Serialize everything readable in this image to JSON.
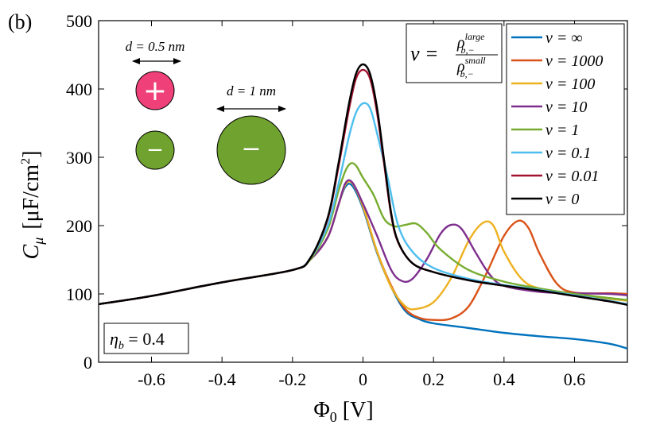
{
  "panel_label": "(b)",
  "chart_data": {
    "type": "line",
    "title": "",
    "xlabel": "Φ₀ [V]",
    "xlabel_main": "Φ",
    "xlabel_sub": "0",
    "xlabel_unit": " [V]",
    "ylabel": "C_μ [μF/cm²]",
    "ylabel_main": "C",
    "ylabel_sub": "μ",
    "ylabel_unit": "[μF/cm",
    "ylabel_sup": "2",
    "ylabel_close": "]",
    "xlim": [
      -0.75,
      0.75
    ],
    "ylim": [
      0,
      500
    ],
    "xticks": [
      -0.6,
      -0.4,
      -0.2,
      0,
      0.2,
      0.4,
      0.6
    ],
    "xtick_labels": [
      "-0.6",
      "-0.4",
      "-0.2",
      "0",
      "0.2",
      "0.4",
      "0.6"
    ],
    "yticks": [
      0,
      100,
      200,
      300,
      400,
      500
    ],
    "ytick_labels": [
      "0",
      "100",
      "200",
      "300",
      "400",
      "500"
    ],
    "legend_position": "top-right",
    "series": [
      {
        "name": "ν = ∞",
        "color": "#0072BD",
        "points": [
          [
            -0.75,
            85
          ],
          [
            -0.6,
            97
          ],
          [
            -0.4,
            117
          ],
          [
            -0.2,
            135
          ],
          [
            -0.15,
            150
          ],
          [
            -0.1,
            183
          ],
          [
            -0.07,
            230
          ],
          [
            -0.05,
            257
          ],
          [
            -0.03,
            258
          ],
          [
            0,
            225
          ],
          [
            0.04,
            160
          ],
          [
            0.08,
            110
          ],
          [
            0.12,
            75
          ],
          [
            0.16,
            63
          ],
          [
            0.2,
            57
          ],
          [
            0.3,
            50
          ],
          [
            0.4,
            43
          ],
          [
            0.5,
            38
          ],
          [
            0.6,
            34
          ],
          [
            0.7,
            27
          ],
          [
            0.75,
            20
          ]
        ]
      },
      {
        "name": "ν = 1000",
        "color": "#D95319",
        "points": [
          [
            -0.75,
            85
          ],
          [
            -0.6,
            97
          ],
          [
            -0.4,
            117
          ],
          [
            -0.2,
            135
          ],
          [
            -0.15,
            150
          ],
          [
            -0.1,
            183
          ],
          [
            -0.07,
            230
          ],
          [
            -0.05,
            260
          ],
          [
            -0.03,
            262
          ],
          [
            0,
            228
          ],
          [
            0.04,
            162
          ],
          [
            0.08,
            112
          ],
          [
            0.12,
            78
          ],
          [
            0.16,
            65
          ],
          [
            0.2,
            62
          ],
          [
            0.25,
            64
          ],
          [
            0.3,
            82
          ],
          [
            0.35,
            130
          ],
          [
            0.4,
            185
          ],
          [
            0.44,
            207
          ],
          [
            0.47,
            196
          ],
          [
            0.5,
            160
          ],
          [
            0.55,
            115
          ],
          [
            0.6,
            102
          ],
          [
            0.7,
            101
          ],
          [
            0.75,
            100
          ]
        ]
      },
      {
        "name": "ν = 100",
        "color": "#EDB120",
        "points": [
          [
            -0.75,
            85
          ],
          [
            -0.6,
            97
          ],
          [
            -0.4,
            117
          ],
          [
            -0.2,
            135
          ],
          [
            -0.15,
            150
          ],
          [
            -0.1,
            183
          ],
          [
            -0.07,
            230
          ],
          [
            -0.05,
            260
          ],
          [
            -0.03,
            262
          ],
          [
            0,
            228
          ],
          [
            0.04,
            162
          ],
          [
            0.08,
            110
          ],
          [
            0.12,
            82
          ],
          [
            0.15,
            78
          ],
          [
            0.2,
            88
          ],
          [
            0.25,
            123
          ],
          [
            0.3,
            178
          ],
          [
            0.34,
            204
          ],
          [
            0.37,
            200
          ],
          [
            0.4,
            162
          ],
          [
            0.45,
            122
          ],
          [
            0.5,
            108
          ],
          [
            0.6,
            100
          ],
          [
            0.7,
            93
          ],
          [
            0.75,
            90
          ]
        ]
      },
      {
        "name": "ν = 10",
        "color": "#7E2F8E",
        "points": [
          [
            -0.75,
            85
          ],
          [
            -0.6,
            97
          ],
          [
            -0.4,
            117
          ],
          [
            -0.2,
            135
          ],
          [
            -0.15,
            150
          ],
          [
            -0.1,
            183
          ],
          [
            -0.07,
            230
          ],
          [
            -0.05,
            262
          ],
          [
            -0.03,
            263
          ],
          [
            0,
            232
          ],
          [
            0.04,
            185
          ],
          [
            0.08,
            135
          ],
          [
            0.11,
            119
          ],
          [
            0.14,
            122
          ],
          [
            0.18,
            150
          ],
          [
            0.22,
            188
          ],
          [
            0.25,
            201
          ],
          [
            0.28,
            195
          ],
          [
            0.32,
            160
          ],
          [
            0.36,
            128
          ],
          [
            0.4,
            112
          ],
          [
            0.5,
            103
          ],
          [
            0.6,
            101
          ],
          [
            0.7,
            100
          ],
          [
            0.75,
            98
          ]
        ]
      },
      {
        "name": "ν = 1",
        "color": "#77AC30",
        "points": [
          [
            -0.75,
            85
          ],
          [
            -0.6,
            97
          ],
          [
            -0.4,
            117
          ],
          [
            -0.2,
            135
          ],
          [
            -0.15,
            150
          ],
          [
            -0.1,
            195
          ],
          [
            -0.07,
            250
          ],
          [
            -0.05,
            280
          ],
          [
            -0.035,
            291
          ],
          [
            -0.02,
            288
          ],
          [
            0,
            270
          ],
          [
            0.03,
            245
          ],
          [
            0.06,
            210
          ],
          [
            0.09,
            199
          ],
          [
            0.12,
            201
          ],
          [
            0.15,
            203
          ],
          [
            0.18,
            190
          ],
          [
            0.22,
            165
          ],
          [
            0.3,
            135
          ],
          [
            0.4,
            118
          ],
          [
            0.5,
            108
          ],
          [
            0.6,
            100
          ],
          [
            0.7,
            94
          ],
          [
            0.75,
            91
          ]
        ]
      },
      {
        "name": "ν = 0.1",
        "color": "#4DBEEE",
        "points": [
          [
            -0.75,
            85
          ],
          [
            -0.6,
            97
          ],
          [
            -0.4,
            117
          ],
          [
            -0.2,
            135
          ],
          [
            -0.15,
            152
          ],
          [
            -0.1,
            200
          ],
          [
            -0.07,
            260
          ],
          [
            -0.04,
            330
          ],
          [
            -0.02,
            365
          ],
          [
            0,
            379
          ],
          [
            0.02,
            372
          ],
          [
            0.04,
            335
          ],
          [
            0.07,
            270
          ],
          [
            0.1,
            200
          ],
          [
            0.14,
            162
          ],
          [
            0.2,
            138
          ],
          [
            0.3,
            122
          ],
          [
            0.4,
            113
          ],
          [
            0.5,
            106
          ],
          [
            0.6,
            98
          ],
          [
            0.7,
            90
          ],
          [
            0.75,
            85
          ]
        ]
      },
      {
        "name": "ν = 0.01",
        "color": "#A2142F",
        "points": [
          [
            -0.75,
            85
          ],
          [
            -0.6,
            97
          ],
          [
            -0.4,
            117
          ],
          [
            -0.2,
            135
          ],
          [
            -0.15,
            152
          ],
          [
            -0.1,
            210
          ],
          [
            -0.07,
            285
          ],
          [
            -0.04,
            370
          ],
          [
            -0.02,
            415
          ],
          [
            0,
            428
          ],
          [
            0.02,
            415
          ],
          [
            0.04,
            365
          ],
          [
            0.06,
            290
          ],
          [
            0.08,
            215
          ],
          [
            0.1,
            175
          ],
          [
            0.14,
            145
          ],
          [
            0.2,
            132
          ],
          [
            0.3,
            120
          ],
          [
            0.4,
            112
          ],
          [
            0.5,
            105
          ],
          [
            0.6,
            97
          ],
          [
            0.7,
            89
          ],
          [
            0.75,
            84
          ]
        ]
      },
      {
        "name": "ν = 0",
        "color": "#000000",
        "points": [
          [
            -0.75,
            85
          ],
          [
            -0.6,
            97
          ],
          [
            -0.4,
            117
          ],
          [
            -0.2,
            135
          ],
          [
            -0.15,
            152
          ],
          [
            -0.1,
            212
          ],
          [
            -0.07,
            290
          ],
          [
            -0.04,
            378
          ],
          [
            -0.02,
            422
          ],
          [
            0,
            436
          ],
          [
            0.02,
            422
          ],
          [
            0.04,
            372
          ],
          [
            0.06,
            295
          ],
          [
            0.08,
            218
          ],
          [
            0.1,
            176
          ],
          [
            0.14,
            145
          ],
          [
            0.2,
            132
          ],
          [
            0.3,
            120
          ],
          [
            0.4,
            112
          ],
          [
            0.5,
            105
          ],
          [
            0.6,
            97
          ],
          [
            0.7,
            89
          ],
          [
            0.75,
            84
          ]
        ]
      }
    ]
  },
  "annotations": {
    "formula_lhs": "ν =",
    "formula_numerator": "ρ",
    "formula_num_sup": "large",
    "formula_num_sub": "b,−",
    "formula_denominator": "ρ",
    "formula_den_sup": "small",
    "formula_den_sub": "b,−",
    "eta_main": "η",
    "eta_sub": "b",
    "eta_value": " = 0.4",
    "d_small": "d = 0.5 nm",
    "d_large": "d = 1 nm",
    "plus_sign": "+",
    "minus_sign": "−",
    "cation_color": "#F0407A",
    "anion_color": "#6FA22E"
  }
}
